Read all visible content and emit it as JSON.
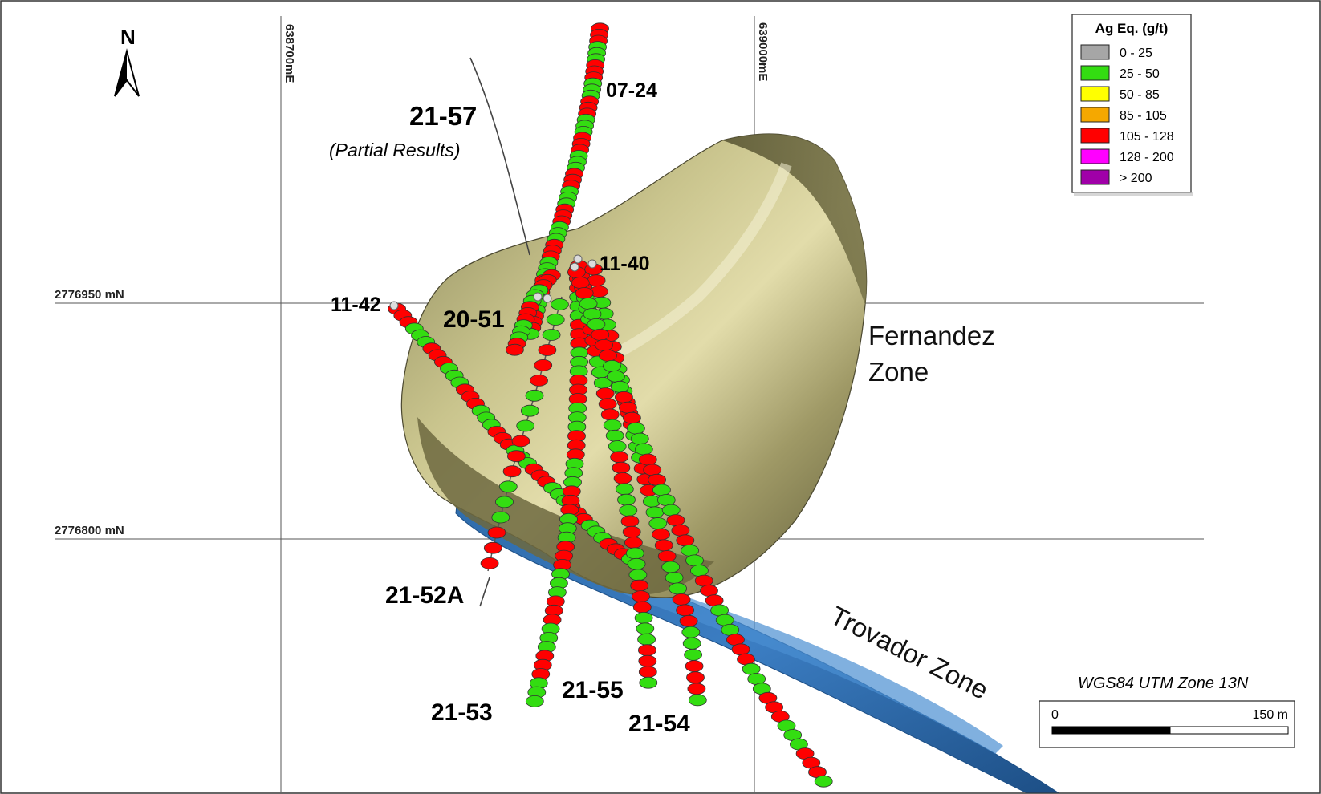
{
  "north_arrow": {
    "label": "N"
  },
  "grid": {
    "easting_labels": [
      "638700mE",
      "639000mE"
    ],
    "northing_labels": [
      "2776950 mN",
      "2776800 mN"
    ]
  },
  "zones": [
    {
      "name": "fernandez",
      "label_line1": "Fernandez",
      "label_line2": "Zone"
    },
    {
      "name": "trovador",
      "label": "Trovador Zone"
    }
  ],
  "drillholes": [
    {
      "id": "07-24",
      "label": "07-24"
    },
    {
      "id": "21-57",
      "label": "21-57",
      "note": "(Partial Results)"
    },
    {
      "id": "11-40",
      "label": "11-40"
    },
    {
      "id": "11-42",
      "label": "11-42"
    },
    {
      "id": "20-51",
      "label": "20-51"
    },
    {
      "id": "21-52A",
      "label": "21-52A"
    },
    {
      "id": "21-53",
      "label": "21-53"
    },
    {
      "id": "21-55",
      "label": "21-55"
    },
    {
      "id": "21-54",
      "label": "21-54"
    }
  ],
  "legend": {
    "title": "Ag Eq. (g/t)",
    "items": [
      {
        "label": "0 - 25",
        "color": "#a6a6a6"
      },
      {
        "label": "25 - 50",
        "color": "#33dd11"
      },
      {
        "label": "50 - 85",
        "color": "#ffff00"
      },
      {
        "label": "85 - 105",
        "color": "#f5a800"
      },
      {
        "label": "105 - 128",
        "color": "#ff0000"
      },
      {
        "label": "128 - 200",
        "color": "#ff00ff"
      },
      {
        "label": "> 200",
        "color": "#a000a8"
      }
    ]
  },
  "projection": "WGS84 UTM Zone 13N",
  "scale_bar": {
    "start_label": "0",
    "end_label": "150 m"
  }
}
